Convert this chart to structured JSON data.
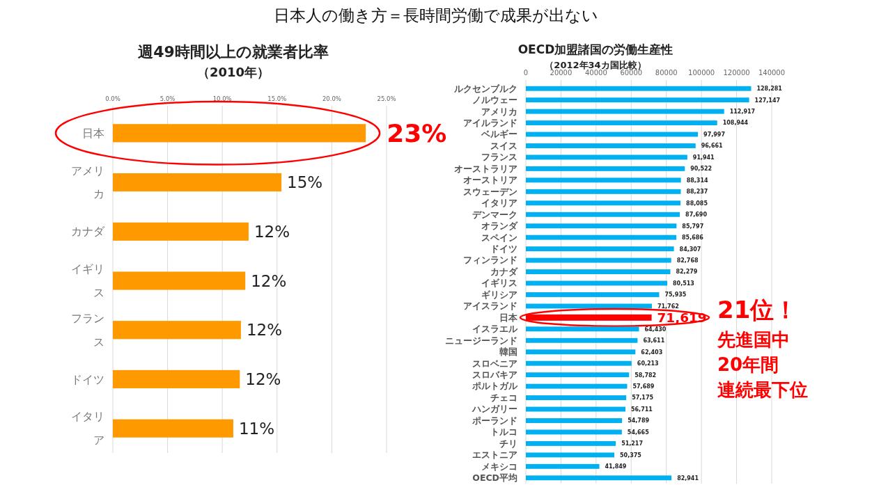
{
  "chart_data": [
    {
      "type": "bar",
      "orientation": "horizontal",
      "title": "週49時間以上の就業者比率",
      "subtitle": "（2010年）",
      "categories": [
        "日本",
        "アメリカ",
        "カナダ",
        "イギリス",
        "フランス",
        "ドイツ",
        "イタリア"
      ],
      "values": [
        23.1,
        15.4,
        12.4,
        12.1,
        11.7,
        11.6,
        11.0
      ],
      "value_labels": [
        null,
        "15%",
        "12%",
        "12%",
        "12%",
        "12%",
        "11%"
      ],
      "color": "#ff9900",
      "xlim": [
        0,
        25
      ],
      "xticks": [
        {
          "value": 0,
          "label": "0.0%"
        },
        {
          "value": 5,
          "label": "5.0%"
        },
        {
          "value": 10,
          "label": "10.0%"
        },
        {
          "value": 15,
          "label": "15.0%"
        },
        {
          "value": 20,
          "label": "20.0%"
        },
        {
          "value": 25,
          "label": "25.0%"
        }
      ],
      "grid": "x",
      "annotations": [
        "日本人の働き方＝長時間労働で成果が出ない",
        {
          "text": "23%",
          "x": 23.1,
          "y": "日本"
        }
      ]
    },
    {
      "type": "bar",
      "orientation": "horizontal",
      "title": "OECD加盟諸国の労働生産性",
      "subtitle": "（2012年34カ国比較）",
      "categories": [
        "ルクセンブルク",
        "ノルウェー",
        "アメリカ",
        "アイルランド",
        "ベルギー",
        "スイス",
        "フランス",
        "オーストラリア",
        "オーストリア",
        "スウェーデン",
        "イタリア",
        "デンマーク",
        "オランダ",
        "スペイン",
        "ドイツ",
        "フィンランド",
        "カナダ",
        "イギリス",
        "ギリシア",
        "アイスランド",
        "日本",
        "イスラエル",
        "ニュージーランド",
        "韓国",
        "スロベニア",
        "スロバキア",
        "ポルトガル",
        "チェコ",
        "ハンガリー",
        "ポーランド",
        "トルコ",
        "チリ",
        "エストニア",
        "メキシコ",
        "OECD平均"
      ],
      "values": [
        128281,
        127147,
        112917,
        108944,
        97997,
        96661,
        91941,
        90522,
        88314,
        88237,
        88085,
        87690,
        85797,
        85686,
        84307,
        82768,
        82279,
        80513,
        75935,
        71762,
        71619,
        64430,
        63611,
        62403,
        60213,
        58782,
        57689,
        57175,
        56711,
        54789,
        54665,
        51217,
        50375,
        41849,
        82941
      ],
      "value_labels": [
        "128,281",
        "127,147",
        "112,917",
        "108,944",
        "97,997",
        "96,661",
        "91,941",
        "90,522",
        "88,314",
        "88,237",
        "88,085",
        "87,690",
        "85,797",
        "85,686",
        "84,307",
        "82,768",
        "82,279",
        "80,513",
        "75,935",
        "71,762",
        "71,619",
        "64,430",
        "63,611",
        "62,403",
        "60,213",
        "58,782",
        "57,689",
        "57,175",
        "56,711",
        "54,789",
        "54,665",
        "51,217",
        "50,375",
        "41,849",
        "82,941"
      ],
      "color": "#00b0f0",
      "colors": [
        "#00b0f0",
        "#00b0f0",
        "#00b0f0",
        "#00b0f0",
        "#00b0f0",
        "#00b0f0",
        "#00b0f0",
        "#00b0f0",
        "#00b0f0",
        "#00b0f0",
        "#00b0f0",
        "#00b0f0",
        "#00b0f0",
        "#00b0f0",
        "#00b0f0",
        "#00b0f0",
        "#00b0f0",
        "#00b0f0",
        "#00b0f0",
        "#00b0f0",
        "#ff0000",
        "#00b0f0",
        "#00b0f0",
        "#00b0f0",
        "#00b0f0",
        "#00b0f0",
        "#00b0f0",
        "#00b0f0",
        "#00b0f0",
        "#00b0f0",
        "#00b0f0",
        "#00b0f0",
        "#00b0f0",
        "#00b0f0",
        "#00b0f0"
      ],
      "xlim": [
        0,
        140000
      ],
      "xticks": [
        0,
        20000,
        40000,
        60000,
        80000,
        100000,
        120000,
        140000
      ],
      "grid": "x",
      "annotations": [
        "21位！",
        "先進国中",
        "20年間",
        "連続最下位"
      ]
    }
  ]
}
